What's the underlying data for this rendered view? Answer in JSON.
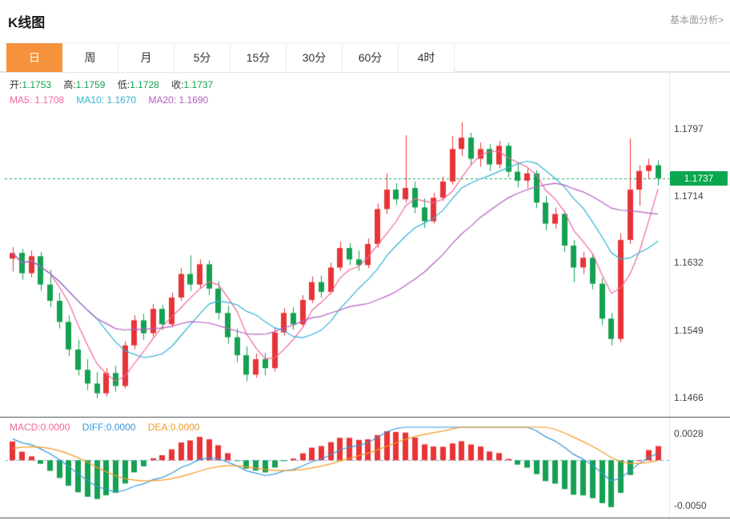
{
  "header": {
    "title": "K线图",
    "link": "基本面分析>"
  },
  "tabs": [
    {
      "key": "day",
      "label": "日",
      "active": true
    },
    {
      "key": "week",
      "label": "周",
      "active": false
    },
    {
      "key": "month",
      "label": "月",
      "active": false
    },
    {
      "key": "5min",
      "label": "5分",
      "active": false
    },
    {
      "key": "15min",
      "label": "15分",
      "active": false
    },
    {
      "key": "30min",
      "label": "30分",
      "active": false
    },
    {
      "key": "60min",
      "label": "60分",
      "active": false
    },
    {
      "key": "4hour",
      "label": "4时",
      "active": false
    }
  ],
  "ohlc_legend": {
    "open_label": "开:",
    "open_value": "1.1753",
    "high_label": "高:",
    "high_value": "1.1759",
    "low_label": "低:",
    "low_value": "1.1728",
    "close_label": "收:",
    "close_value": "1.1737"
  },
  "ma_legend": {
    "ma5_label": "MA5:",
    "ma5_value": "1.1708",
    "ma10_label": "MA10:",
    "ma10_value": "1.1670",
    "ma20_label": "MA20:",
    "ma20_value": "1.1690"
  },
  "macd_legend": {
    "macd_label": "MACD:",
    "macd_value": "0.0000",
    "diff_label": "DIFF:",
    "diff_value": "0.0000",
    "dea_label": "DEA:",
    "dea_value": "0.0000"
  },
  "colors": {
    "up": "#e83437",
    "down": "#15a152",
    "value_green": "#15a152",
    "ma5": "#f0679e",
    "ma10": "#2fb3d4",
    "ma20": "#b35ec1",
    "diff": "#3598db",
    "dea": "#f59a23",
    "macd_label": "#f0679e",
    "price_line": "#12a94f",
    "badge_bg": "#0aa74f",
    "badge_text": "#ffffff",
    "zero_line": "#8ab0d8",
    "axis_text": "#444444",
    "separator": "#4d4d4d",
    "border": "#e5e5e5",
    "tab_active_bg": "#f7923c",
    "link": "#999999"
  },
  "chart_data": {
    "type": "candlestick",
    "title": "K线图",
    "period": "日",
    "y_ticks": [
      1.1797,
      1.1714,
      1.1632,
      1.1549,
      1.1466
    ],
    "ylim": [
      1.1446,
      1.1862
    ],
    "current_price": 1.1737,
    "current_price_label": "1.1737",
    "ma_periods": [
      5,
      10,
      20
    ],
    "ohlc": [
      [
        1.1638,
        1.1652,
        1.1622,
        1.1645
      ],
      [
        1.1645,
        1.165,
        1.1612,
        1.162
      ],
      [
        1.162,
        1.1648,
        1.1615,
        1.1641
      ],
      [
        1.1641,
        1.1646,
        1.1598,
        1.1606
      ],
      [
        1.1606,
        1.1624,
        1.1578,
        1.1586
      ],
      [
        1.1586,
        1.1596,
        1.1552,
        1.156
      ],
      [
        1.156,
        1.1568,
        1.1518,
        1.1526
      ],
      [
        1.1526,
        1.1538,
        1.1494,
        1.1501
      ],
      [
        1.1501,
        1.1514,
        1.1476,
        1.1484
      ],
      [
        1.1484,
        1.1498,
        1.1466,
        1.1472
      ],
      [
        1.1472,
        1.1503,
        1.1468,
        1.1497
      ],
      [
        1.1497,
        1.1506,
        1.1474,
        1.1481
      ],
      [
        1.1481,
        1.1536,
        1.1478,
        1.1531
      ],
      [
        1.1531,
        1.1568,
        1.1526,
        1.1562
      ],
      [
        1.1562,
        1.157,
        1.1538,
        1.1546
      ],
      [
        1.1546,
        1.1582,
        1.1542,
        1.1576
      ],
      [
        1.1576,
        1.1581,
        1.155,
        1.1557
      ],
      [
        1.1557,
        1.1596,
        1.1553,
        1.159
      ],
      [
        1.159,
        1.1626,
        1.1586,
        1.1619
      ],
      [
        1.1619,
        1.1642,
        1.1598,
        1.1606
      ],
      [
        1.1606,
        1.1637,
        1.1601,
        1.1631
      ],
      [
        1.1631,
        1.1636,
        1.1593,
        1.1601
      ],
      [
        1.1601,
        1.161,
        1.1563,
        1.1571
      ],
      [
        1.1571,
        1.158,
        1.1533,
        1.1541
      ],
      [
        1.1541,
        1.1552,
        1.151,
        1.1519
      ],
      [
        1.1519,
        1.153,
        1.1487,
        1.1495
      ],
      [
        1.1495,
        1.1521,
        1.1491,
        1.1514
      ],
      [
        1.1514,
        1.1522,
        1.1494,
        1.1503
      ],
      [
        1.1503,
        1.1553,
        1.1499,
        1.1547
      ],
      [
        1.1547,
        1.1577,
        1.1543,
        1.1571
      ],
      [
        1.1571,
        1.1578,
        1.155,
        1.1557
      ],
      [
        1.1557,
        1.1593,
        1.1553,
        1.1587
      ],
      [
        1.1587,
        1.1616,
        1.1583,
        1.1609
      ],
      [
        1.1609,
        1.1617,
        1.159,
        1.1597
      ],
      [
        1.1597,
        1.1633,
        1.1594,
        1.1627
      ],
      [
        1.1627,
        1.1659,
        1.1623,
        1.1651
      ],
      [
        1.1651,
        1.1657,
        1.163,
        1.1637
      ],
      [
        1.1637,
        1.1648,
        1.1623,
        1.163
      ],
      [
        1.163,
        1.1663,
        1.1626,
        1.1656
      ],
      [
        1.1656,
        1.1706,
        1.1651,
        1.1699
      ],
      [
        1.1699,
        1.1743,
        1.1693,
        1.1723
      ],
      [
        1.1723,
        1.1731,
        1.1704,
        1.1711
      ],
      [
        1.1711,
        1.179,
        1.1707,
        1.1725
      ],
      [
        1.1725,
        1.1733,
        1.1694,
        1.1701
      ],
      [
        1.1701,
        1.1712,
        1.1676,
        1.1684
      ],
      [
        1.1684,
        1.1719,
        1.1681,
        1.1713
      ],
      [
        1.1713,
        1.1739,
        1.1709,
        1.1733
      ],
      [
        1.1733,
        1.1789,
        1.1729,
        1.1773
      ],
      [
        1.1773,
        1.1806,
        1.1764,
        1.1787
      ],
      [
        1.1787,
        1.1793,
        1.1753,
        1.1761
      ],
      [
        1.1761,
        1.1781,
        1.1751,
        1.1773
      ],
      [
        1.1773,
        1.1779,
        1.1746,
        1.1754
      ],
      [
        1.1754,
        1.1783,
        1.1749,
        1.1777
      ],
      [
        1.1777,
        1.1781,
        1.1738,
        1.1745
      ],
      [
        1.1745,
        1.1756,
        1.1726,
        1.1734
      ],
      [
        1.1734,
        1.1749,
        1.1725,
        1.1743
      ],
      [
        1.1743,
        1.1747,
        1.17,
        1.1707
      ],
      [
        1.1707,
        1.1715,
        1.1673,
        1.1681
      ],
      [
        1.1681,
        1.1701,
        1.1675,
        1.1693
      ],
      [
        1.1693,
        1.1697,
        1.1646,
        1.1654
      ],
      [
        1.1654,
        1.1661,
        1.1609,
        1.1627
      ],
      [
        1.1627,
        1.1646,
        1.1619,
        1.1639
      ],
      [
        1.1639,
        1.1643,
        1.16,
        1.1607
      ],
      [
        1.1607,
        1.1614,
        1.1556,
        1.1564
      ],
      [
        1.1564,
        1.1571,
        1.1531,
        1.1539
      ],
      [
        1.1539,
        1.1669,
        1.1535,
        1.1661
      ],
      [
        1.1661,
        1.1786,
        1.1656,
        1.1723
      ],
      [
        1.1723,
        1.1753,
        1.1703,
        1.1746
      ],
      [
        1.1746,
        1.1761,
        1.1736,
        1.1753
      ],
      [
        1.1753,
        1.1759,
        1.1728,
        1.1737
      ]
    ],
    "macd_panel": {
      "y_ticks": [
        0.0028,
        -0.005
      ],
      "zero_line": 0,
      "ylim": [
        -0.0058,
        0.0036
      ],
      "macd_params": [
        12,
        26,
        9
      ]
    }
  }
}
